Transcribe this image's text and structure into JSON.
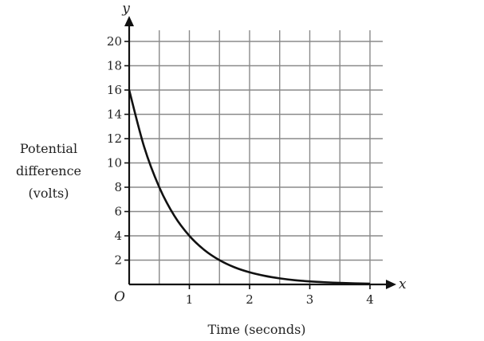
{
  "chart_data": {
    "type": "line",
    "title": "",
    "xlabel": "Time (seconds)",
    "ylabel_lines": [
      "Potential",
      "difference",
      "(volts)"
    ],
    "x_axis_letter": "x",
    "y_axis_letter": "y",
    "origin_label": "O",
    "xlim": [
      0,
      4.2
    ],
    "ylim": [
      0,
      21
    ],
    "x_ticks": [
      1,
      2,
      3,
      4
    ],
    "y_ticks": [
      2,
      4,
      6,
      8,
      10,
      12,
      14,
      16,
      18,
      20
    ],
    "x_gridlines": [
      0.5,
      1,
      1.5,
      2,
      2.5,
      3,
      3.5,
      4
    ],
    "y_gridlines": [
      2,
      4,
      6,
      8,
      10,
      12,
      14,
      16,
      18,
      20
    ],
    "grid": true,
    "series": [
      {
        "x": [
          0,
          0.25,
          0.5,
          0.75,
          1,
          1.25,
          1.5,
          1.75,
          2,
          2.25,
          2.5,
          2.75,
          3,
          3.25,
          3.5,
          3.75,
          4
        ],
        "y": [
          16,
          11.3,
          8,
          5.65,
          4,
          2.83,
          2,
          1.41,
          1,
          0.71,
          0.5,
          0.35,
          0.25,
          0.18,
          0.125,
          0.09,
          0.06
        ]
      }
    ]
  }
}
